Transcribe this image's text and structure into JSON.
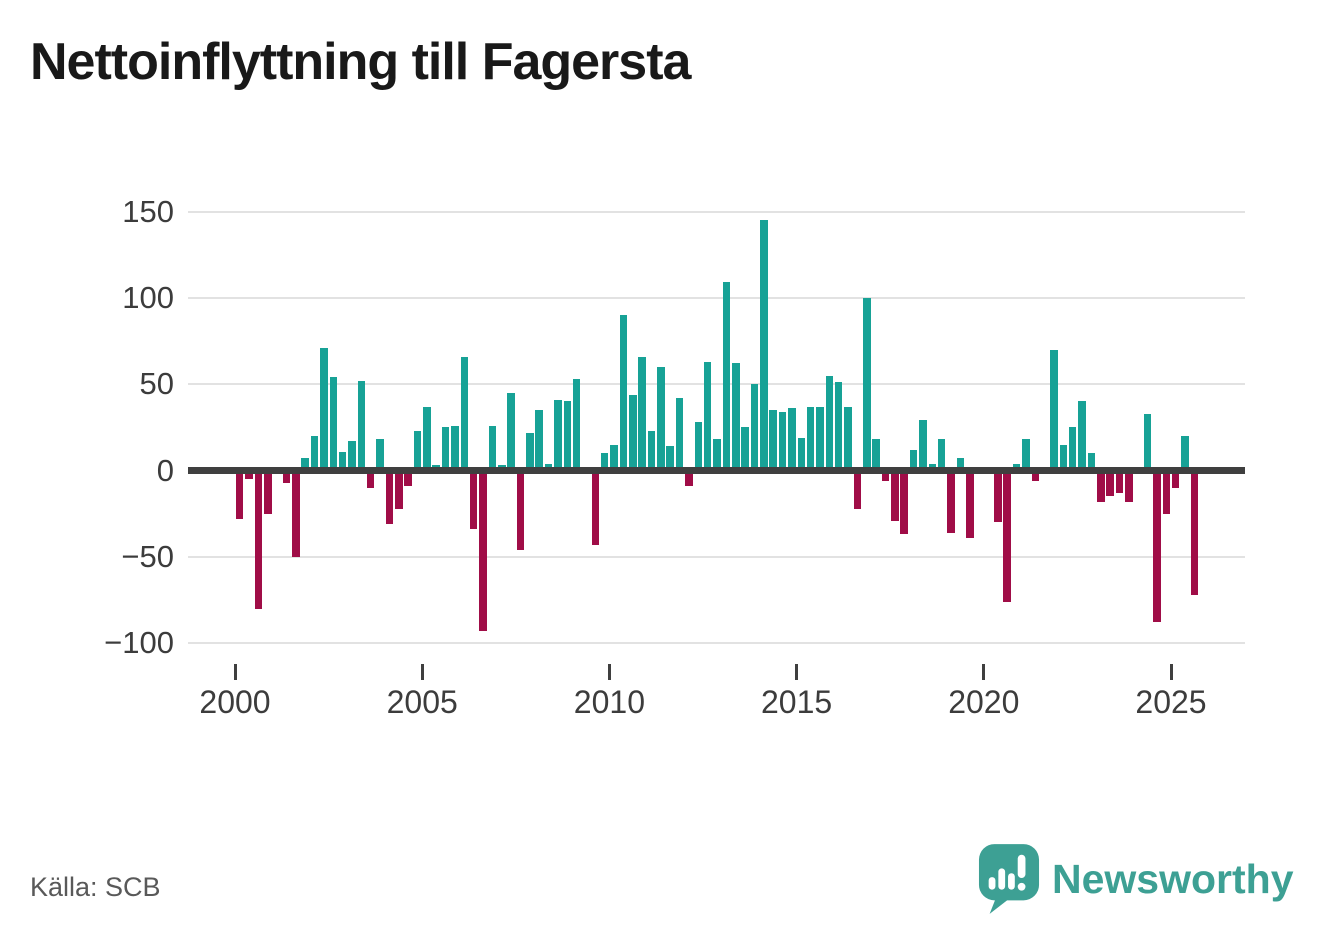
{
  "page": {
    "title": "Nettoinflyttning till Fagersta",
    "background": "#ffffff"
  },
  "chart_data": {
    "type": "bar",
    "title": "Nettoinflyttning till Fagersta",
    "frequency": "quarterly",
    "x_range": [
      "2000 Q1",
      "2025 Q3"
    ],
    "categories": [
      "2000 Q1",
      "2000 Q2",
      "2000 Q3",
      "2000 Q4",
      "2001 Q1",
      "2001 Q2",
      "2001 Q3",
      "2001 Q4",
      "2002 Q1",
      "2002 Q2",
      "2002 Q3",
      "2002 Q4",
      "2003 Q1",
      "2003 Q2",
      "2003 Q3",
      "2003 Q4",
      "2004 Q1",
      "2004 Q2",
      "2004 Q3",
      "2004 Q4",
      "2005 Q1",
      "2005 Q2",
      "2005 Q3",
      "2005 Q4",
      "2006 Q1",
      "2006 Q2",
      "2006 Q3",
      "2006 Q4",
      "2007 Q1",
      "2007 Q2",
      "2007 Q3",
      "2007 Q4",
      "2008 Q1",
      "2008 Q2",
      "2008 Q3",
      "2008 Q4",
      "2009 Q1",
      "2009 Q2",
      "2009 Q3",
      "2009 Q4",
      "2010 Q1",
      "2010 Q2",
      "2010 Q3",
      "2010 Q4",
      "2011 Q1",
      "2011 Q2",
      "2011 Q3",
      "2011 Q4",
      "2012 Q1",
      "2012 Q2",
      "2012 Q3",
      "2012 Q4",
      "2013 Q1",
      "2013 Q2",
      "2013 Q3",
      "2013 Q4",
      "2014 Q1",
      "2014 Q2",
      "2014 Q3",
      "2014 Q4",
      "2015 Q1",
      "2015 Q2",
      "2015 Q3",
      "2015 Q4",
      "2016 Q1",
      "2016 Q2",
      "2016 Q3",
      "2016 Q4",
      "2017 Q1",
      "2017 Q2",
      "2017 Q3",
      "2017 Q4",
      "2018 Q1",
      "2018 Q2",
      "2018 Q3",
      "2018 Q4",
      "2019 Q1",
      "2019 Q2",
      "2019 Q3",
      "2019 Q4",
      "2020 Q1",
      "2020 Q2",
      "2020 Q3",
      "2020 Q4",
      "2021 Q1",
      "2021 Q2",
      "2021 Q3",
      "2021 Q4",
      "2022 Q1",
      "2022 Q2",
      "2022 Q3",
      "2022 Q4",
      "2023 Q1",
      "2023 Q2",
      "2023 Q3",
      "2023 Q4",
      "2024 Q1",
      "2024 Q2",
      "2024 Q3",
      "2024 Q4",
      "2025 Q1",
      "2025 Q2",
      "2025 Q3"
    ],
    "values": [
      -28,
      -5,
      -80,
      -25,
      0,
      -7,
      -50,
      7,
      20,
      71,
      54,
      11,
      17,
      52,
      -10,
      18,
      -31,
      -22,
      -9,
      23,
      37,
      3,
      25,
      26,
      66,
      -34,
      -93,
      26,
      3,
      45,
      -46,
      22,
      35,
      4,
      41,
      40,
      53,
      0,
      -43,
      10,
      15,
      90,
      44,
      66,
      23,
      60,
      14,
      42,
      -9,
      28,
      63,
      18,
      109,
      62,
      25,
      50,
      145,
      35,
      34,
      36,
      19,
      37,
      37,
      55,
      51,
      37,
      -22,
      100,
      18,
      -6,
      -29,
      -37,
      12,
      29,
      4,
      18,
      -36,
      7,
      -39,
      2,
      2,
      -30,
      -76,
      4,
      18,
      -6,
      0,
      70,
      15,
      25,
      40,
      10,
      -18,
      -15,
      -13,
      -18,
      0,
      33,
      -88,
      -25,
      -10,
      20,
      -72
    ],
    "yticks": [
      150,
      100,
      50,
      0,
      -50,
      -100
    ],
    "ytick_labels": [
      "150",
      "100",
      "50",
      "0",
      "−50",
      "−100"
    ],
    "xticks": [
      "2000",
      "2005",
      "2010",
      "2015",
      "2020",
      "2025"
    ],
    "ylim": [
      -110,
      160
    ],
    "grid": true,
    "legend": "none",
    "colors": {
      "positive": "#17a296",
      "negative": "#a00d47",
      "axis": "#3f3f3f",
      "gridline": "#e2e2e2",
      "tick_label": "#3c3c3c"
    },
    "source": "Källa: SCB"
  },
  "footer": {
    "source_label": "Källa: SCB",
    "brand_name": "Newsworthy",
    "brand_color": "#3da094"
  }
}
